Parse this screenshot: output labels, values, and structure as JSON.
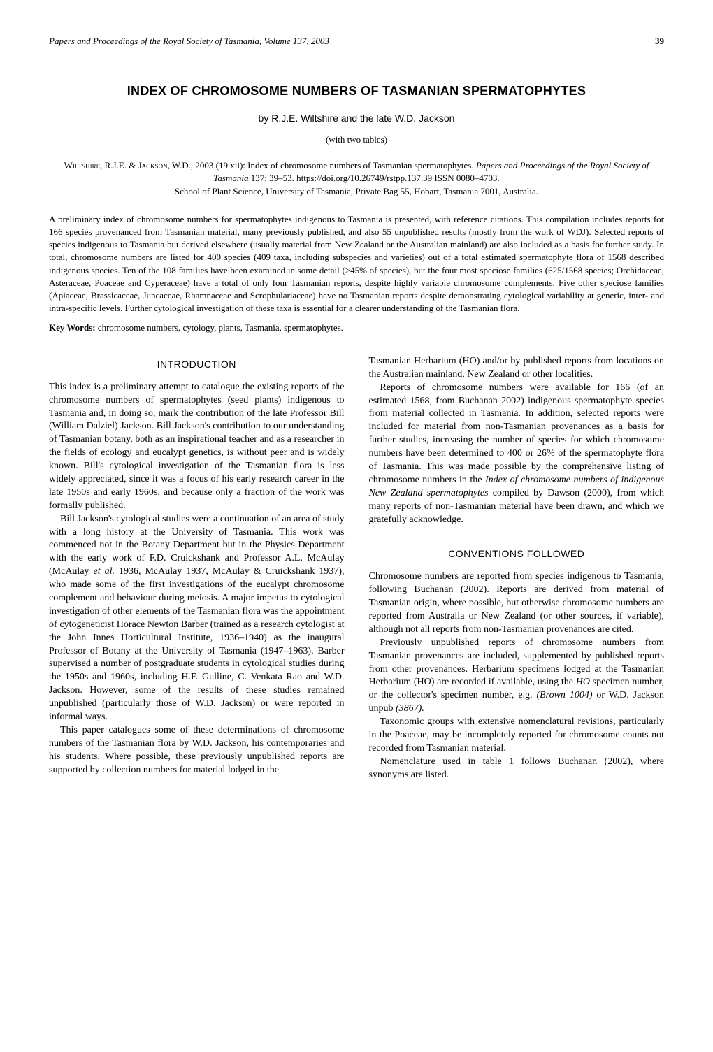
{
  "running_header": {
    "journal": "Papers and Proceedings of the Royal Society of Tasmania, Volume 137, 2003",
    "page_number": "39"
  },
  "title": "INDEX OF CHROMOSOME NUMBERS OF TASMANIAN SPERMATOPHYTES",
  "authors": "by R.J.E. Wiltshire and the late W.D. Jackson",
  "tables_note": "(with two tables)",
  "citation": {
    "authors_sc": "Wiltshire, R.J.E. & Jackson, W.D.",
    "year_date": ", 2003 (19.xii): Index of chromosome numbers of Tasmanian spermatophytes. ",
    "journal_italic": "Papers and Proceedings of the Royal Society of Tasmania",
    "vol_pages": " 137: 39–53. https://doi.org/10.26749/rstpp.137.39 ISSN 0080–4703.",
    "affiliation": "School of Plant Science, University of Tasmania, Private Bag 55, Hobart, Tasmania 7001, Australia."
  },
  "abstract": "A preliminary index of chromosome numbers for spermatophytes indigenous to Tasmania is presented, with reference citations. This compilation includes reports for 166 species provenanced from Tasmanian material, many previously published, and also 55 unpublished results (mostly from the work of WDJ). Selected reports of species indigenous to Tasmania but derived elsewhere (usually material from New Zealand or the Australian mainland) are also included as a basis for further study. In total, chromosome numbers are listed for 400 species (409 taxa, including subspecies and varieties) out of a total estimated spermatophyte flora of 1568 described indigenous species. Ten of the 108 families have been examined in some detail (>45% of species), but the four most speciose families (625/1568 species; Orchidaceae, Asteraceae, Poaceae and Cyperaceae) have a total of only four Tasmanian reports, despite highly variable chromosome complements. Five other speciose families (Apiaceae, Brassicaceae, Juncaceae, Rhamnaceae and Scrophulariaceae) have no Tasmanian reports despite demonstrating cytological variability at generic, inter- and intra-specific levels. Further cytological investigation of these taxa is essential for a clearer understanding of the Tasmanian flora.",
  "keywords_label": "Key Words:",
  "keywords": " chromosome numbers, cytology, plants, Tasmania, spermatophytes.",
  "sections": {
    "introduction_heading": "INTRODUCTION",
    "conventions_heading": "CONVENTIONS FOLLOWED"
  },
  "intro": {
    "p1": "This index is a preliminary attempt to catalogue the existing reports of the chromosome numbers of spermatophytes (seed plants) indigenous to Tasmania and, in doing so, mark the contribution of the late Professor Bill (William Dalziel) Jackson. Bill Jackson's contribution to our understanding of Tasmanian botany, both as an inspirational teacher and as a researcher in the fields of ecology and eucalypt genetics, is without peer and is widely known. Bill's cytological investigation of the Tasmanian flora is less widely appreciated, since it was a focus of his early research career in the late 1950s and early 1960s, and because only a fraction of the work was formally published.",
    "p2a": "Bill Jackson's cytological studies were a continuation of an area of study with a long history at the University of Tasmania. This work was commenced not in the Botany Department but in the Physics Department with the early work of F.D. Cruickshank and Professor A.L. McAulay (McAulay ",
    "p2b": "et al.",
    "p2c": " 1936, McAulay 1937, McAulay & Cruickshank 1937), who made some of the first investigations of the eucalypt chromosome complement and behaviour during meiosis. A major impetus to cytological investigation of other elements of the Tasmanian flora was the appointment of cytogeneticist Horace Newton Barber (trained as a research cytologist at the John Innes Horticultural Institute, 1936–1940) as the inaugural Professor of Botany at the University of Tasmania (1947–1963). Barber supervised a number of postgraduate students in cytological studies during the 1950s and 1960s, including H.F. Gulline, C. Venkata Rao and W.D. Jackson. However, some of the results of these studies remained unpublished (particularly those of W.D. Jackson) or were reported in informal ways.",
    "p3": "This paper catalogues some of these determinations of chromosome numbers of the Tasmanian flora by W.D. Jackson, his contemporaries and his students. Where possible, these previously unpublished reports are supported by collection numbers for material lodged in the",
    "p3_cont": "Tasmanian Herbarium (HO) and/or by published reports from locations on the Australian mainland, New Zealand or other localities.",
    "p4a": "Reports of chromosome numbers were available for 166 (of an estimated 1568, from Buchanan 2002) indigenous spermatophyte species from material collected in Tasmania. In addition, selected reports were included for material from non-Tasmanian provenances as a basis for further studies, increasing the number of species for which chromosome numbers have been determined to 400 or 26% of the spermatophyte flora of Tasmania. This was made possible by the comprehensive listing of chromosome numbers in the ",
    "p4b": "Index of chromosome numbers of indigenous New Zealand spermatophytes",
    "p4c": " compiled by Dawson (2000), from which many reports of non-Tasmanian material have been drawn, and which we gratefully acknowledge."
  },
  "conventions": {
    "p1": "Chromosome numbers are reported from species indigenous to Tasmania, following Buchanan (2002). Reports are derived from material of Tasmanian origin, where possible, but otherwise chromosome numbers are reported from Australia or New Zealand (or other sources, if variable), although not all reports from non-Tasmanian provenances are cited.",
    "p2a": "Previously unpublished reports of chromosome numbers from Tasmanian provenances are included, supplemented by published reports from other provenances. Herbarium specimens lodged at the Tasmanian Herbarium (HO) are recorded if available, using the ",
    "p2b": "HO",
    "p2c": " specimen number, or the collector's specimen number, e.g. ",
    "p2d": "(Brown 1004)",
    "p2e": " or W.D. Jackson unpub ",
    "p2f": "(3867).",
    "p3": "Taxonomic groups with extensive nomenclatural revisions, particularly in the Poaceae, may be incompletely reported for chromosome counts not recorded from Tasmanian material.",
    "p4": "Nomenclature used in table 1 follows Buchanan (2002), where synonyms are listed."
  }
}
